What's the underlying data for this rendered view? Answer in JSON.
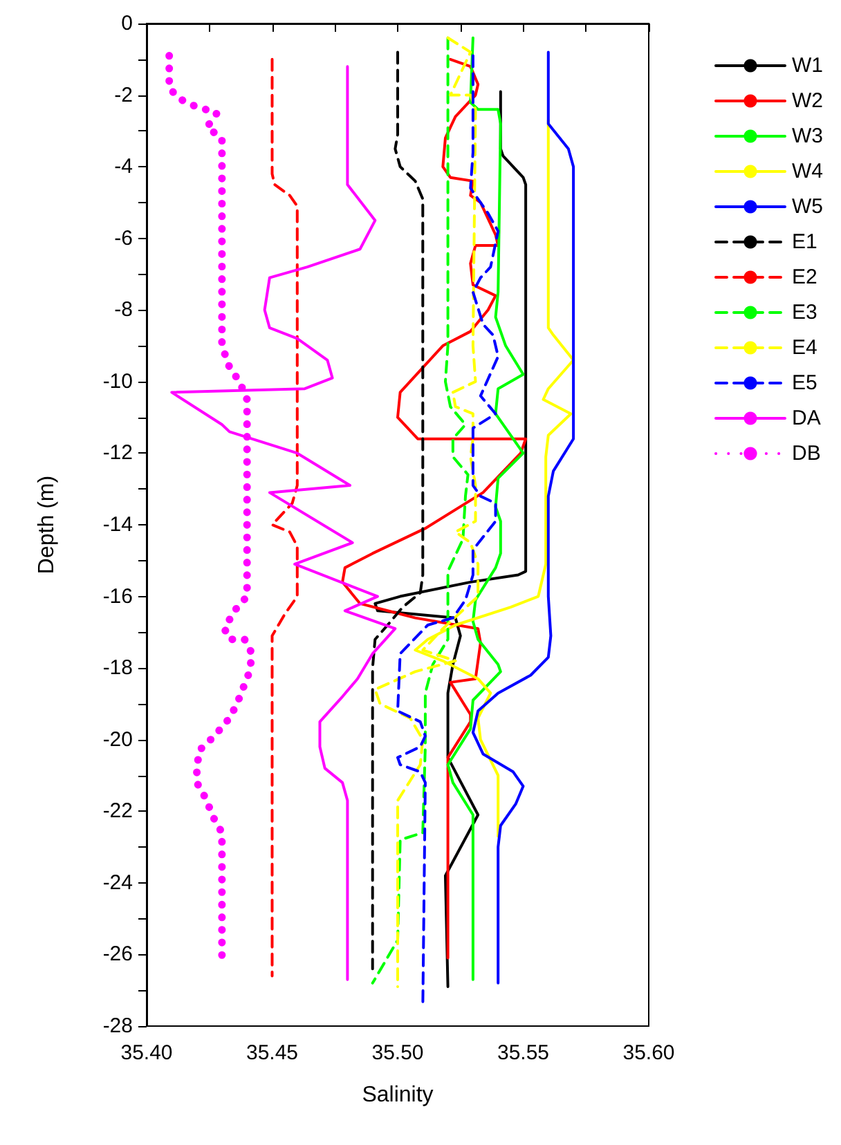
{
  "chart_data": {
    "type": "line",
    "xlabel": "Salinity",
    "ylabel": "Depth (m)",
    "legend": "right",
    "grid": false,
    "xlim": [
      35.4,
      35.6
    ],
    "xticks": [
      {
        "value": 35.4,
        "label": "35.40"
      },
      {
        "value": 35.425,
        "label": null
      },
      {
        "value": 35.45,
        "label": "35.45"
      },
      {
        "value": 35.475,
        "label": null
      },
      {
        "value": 35.5,
        "label": "35.50"
      },
      {
        "value": 35.525,
        "label": null
      },
      {
        "value": 35.55,
        "label": "35.55"
      },
      {
        "value": 35.575,
        "label": null
      },
      {
        "value": 35.6,
        "label": "35.60"
      }
    ],
    "ylim": [
      -28,
      0
    ],
    "yticks": [
      -28,
      {
        "value": -27,
        "label": null
      },
      -26,
      {
        "value": -25,
        "label": null
      },
      -24,
      {
        "value": -23,
        "label": null
      },
      -22,
      {
        "value": -21,
        "label": null
      },
      -20,
      {
        "value": -19,
        "label": null
      },
      -18,
      {
        "value": -17,
        "label": null
      },
      -16,
      {
        "value": -15,
        "label": null
      },
      -14,
      {
        "value": -13,
        "label": null
      },
      -12,
      {
        "value": -11,
        "label": null
      },
      -10,
      {
        "value": -9,
        "label": null
      },
      -8,
      {
        "value": -7,
        "label": null
      },
      -6,
      {
        "value": -5,
        "label": null
      },
      -4,
      {
        "value": -3,
        "label": null
      },
      -2,
      {
        "value": -1,
        "label": null
      },
      0
    ],
    "series": [
      {
        "name": "W1",
        "color": "#000000",
        "line_style": "solid",
        "x": [
          35.541,
          35.541,
          35.542,
          35.55,
          35.551,
          35.551,
          35.548,
          35.529,
          35.501,
          35.491,
          35.492,
          35.523,
          35.525,
          35.522,
          35.52,
          35.52,
          35.532,
          35.519,
          35.52
        ],
        "values": [
          -1.9,
          -3.5,
          -3.7,
          -4.3,
          -4.5,
          -15.3,
          -15.4,
          -15.6,
          -16.0,
          -16.2,
          -16.4,
          -16.6,
          -17.1,
          -17.9,
          -18.7,
          -20.5,
          -22.1,
          -23.8,
          -26.9
        ]
      },
      {
        "name": "W2",
        "color": "#ff0000",
        "line_style": "solid",
        "x": [
          35.521,
          35.529,
          35.532,
          35.531,
          35.523,
          35.519,
          35.518,
          35.521,
          35.53,
          35.529,
          35.533,
          35.539,
          35.54,
          35.531,
          35.529,
          35.53,
          35.539,
          35.536,
          35.529,
          35.518,
          35.501,
          35.5,
          35.508,
          35.551,
          35.549,
          35.534,
          35.511,
          35.49,
          35.479,
          35.478,
          35.485,
          35.496,
          35.507,
          35.532,
          35.533,
          35.531,
          35.521,
          35.529,
          35.529,
          35.52,
          35.52
        ],
        "values": [
          -1.0,
          -1.2,
          -1.7,
          -2.0,
          -2.6,
          -3.2,
          -4.0,
          -4.3,
          -4.4,
          -4.8,
          -5.0,
          -5.9,
          -6.2,
          -6.2,
          -6.7,
          -7.3,
          -7.6,
          -8.0,
          -8.6,
          -9.0,
          -10.3,
          -11.0,
          -11.6,
          -11.6,
          -12.0,
          -13.1,
          -14.1,
          -14.8,
          -15.2,
          -15.6,
          -16.2,
          -16.4,
          -16.6,
          -16.9,
          -17.3,
          -18.3,
          -18.4,
          -19.3,
          -19.5,
          -20.5,
          -26.1
        ]
      },
      {
        "name": "W3",
        "color": "#00ff00",
        "line_style": "solid",
        "x": [
          35.53,
          35.529,
          35.532,
          35.54,
          35.541,
          35.54,
          35.539,
          35.543,
          35.55,
          35.54,
          35.539,
          35.55,
          35.54,
          35.539,
          35.541,
          35.541,
          35.539,
          35.531,
          35.53,
          35.532,
          35.54,
          35.541,
          35.53,
          35.529,
          35.52,
          35.522,
          35.53,
          35.53
        ],
        "values": [
          -0.4,
          -2.2,
          -2.4,
          -2.4,
          -2.8,
          -7.5,
          -8.2,
          -9.0,
          -9.8,
          -10.2,
          -10.9,
          -12.0,
          -12.7,
          -13.5,
          -13.9,
          -14.8,
          -15.2,
          -16.1,
          -16.7,
          -17.2,
          -17.9,
          -18.1,
          -18.9,
          -19.7,
          -20.7,
          -21.2,
          -22.1,
          -26.7
        ]
      },
      {
        "name": "W4",
        "color": "#ffff00",
        "line_style": "solid",
        "x": [
          35.56,
          35.56,
          35.562,
          35.57,
          35.56,
          35.558,
          35.569,
          35.56,
          35.559,
          35.559,
          35.556,
          35.545,
          35.523,
          35.512,
          35.507,
          35.518,
          35.532,
          35.537,
          35.532,
          35.533,
          35.54,
          35.54
        ],
        "values": [
          -2.7,
          -8.5,
          -8.7,
          -9.4,
          -10.2,
          -10.5,
          -10.9,
          -11.5,
          -12.1,
          -15.1,
          -16.0,
          -16.3,
          -16.8,
          -17.2,
          -17.5,
          -17.8,
          -18.3,
          -18.7,
          -19.4,
          -20.0,
          -21.0,
          -22.7
        ]
      },
      {
        "name": "W5",
        "color": "#0000ff",
        "line_style": "solid",
        "x": [
          35.56,
          35.56,
          35.56,
          35.568,
          35.57,
          35.57,
          35.562,
          35.56,
          35.56,
          35.561,
          35.56,
          35.553,
          35.54,
          35.532,
          35.53,
          35.534,
          35.546,
          35.55,
          35.547,
          35.541,
          35.54,
          35.54
        ],
        "values": [
          -0.8,
          -2.4,
          -2.8,
          -3.5,
          -4.0,
          -11.6,
          -12.5,
          -13.2,
          -16.0,
          -17.1,
          -17.7,
          -18.2,
          -18.7,
          -19.2,
          -19.8,
          -20.4,
          -20.9,
          -21.3,
          -21.8,
          -22.4,
          -23.0,
          -26.8
        ]
      },
      {
        "name": "E1",
        "color": "#000000",
        "line_style": "dashed",
        "x": [
          35.5,
          35.5,
          35.499,
          35.501,
          35.507,
          35.51,
          35.51,
          35.509,
          35.502,
          35.496,
          35.491,
          35.49,
          35.49
        ],
        "values": [
          -0.8,
          -3.1,
          -3.5,
          -4.0,
          -4.4,
          -4.9,
          -15.4,
          -15.9,
          -16.3,
          -16.8,
          -17.2,
          -18.0,
          -26.4
        ]
      },
      {
        "name": "E2",
        "color": "#ff0000",
        "line_style": "dashed",
        "x": [
          35.45,
          35.45,
          35.451,
          35.457,
          35.46,
          35.46,
          35.458,
          35.45,
          35.457,
          35.46,
          35.46,
          35.455,
          35.45,
          35.45,
          35.45
        ],
        "values": [
          -1.0,
          -4.2,
          -4.5,
          -4.8,
          -5.1,
          -12.9,
          -13.4,
          -14.0,
          -14.2,
          -14.6,
          -16.0,
          -16.5,
          -17.1,
          -17.9,
          -26.6
        ]
      },
      {
        "name": "E3",
        "color": "#00ff00",
        "line_style": "dashed",
        "x": [
          35.52,
          35.52,
          35.519,
          35.521,
          35.527,
          35.522,
          35.522,
          35.528,
          35.527,
          35.526,
          35.52,
          35.52,
          35.52,
          35.514,
          35.511,
          35.511,
          35.51,
          35.501,
          35.5,
          35.49
        ],
        "values": [
          -0.4,
          -9.0,
          -10.0,
          -10.7,
          -11.2,
          -11.6,
          -12.1,
          -12.6,
          -13.2,
          -14.4,
          -15.3,
          -16.5,
          -17.2,
          -17.9,
          -18.7,
          -20.2,
          -22.6,
          -22.8,
          -25.6,
          -26.8
        ]
      },
      {
        "name": "E4",
        "color": "#ffff00",
        "line_style": "dashed",
        "x": [
          35.52,
          35.529,
          35.523,
          35.521,
          35.529,
          35.531,
          35.53,
          35.531,
          35.522,
          35.523,
          35.53,
          35.53,
          35.529,
          35.531,
          35.531,
          35.523,
          35.529,
          35.532,
          35.532,
          35.518,
          35.51,
          35.523,
          35.507,
          35.491,
          35.493,
          35.505,
          35.51,
          35.509,
          35.5,
          35.5
        ],
        "values": [
          -0.4,
          -0.8,
          -1.7,
          -2.0,
          -2.0,
          -2.4,
          -9.0,
          -10.0,
          -10.3,
          -10.7,
          -10.9,
          -11.6,
          -12.1,
          -12.9,
          -13.9,
          -14.2,
          -14.5,
          -15.1,
          -16.0,
          -16.9,
          -17.5,
          -17.8,
          -18.1,
          -18.6,
          -19.0,
          -19.4,
          -20.0,
          -20.7,
          -21.7,
          -26.9
        ]
      },
      {
        "name": "E5",
        "color": "#0000ff",
        "line_style": "dashed",
        "x": [
          35.53,
          35.53,
          35.529,
          35.533,
          35.536,
          35.54,
          35.537,
          35.533,
          35.53,
          35.534,
          35.538,
          35.54,
          35.533,
          35.539,
          35.53,
          35.53,
          35.533,
          35.539,
          35.539,
          35.53,
          35.53,
          35.527,
          35.522,
          35.512,
          35.501,
          35.5,
          35.509,
          35.511,
          35.509,
          35.5,
          35.501,
          35.509,
          35.511,
          35.51
        ],
        "values": [
          -0.9,
          -3.6,
          -4.6,
          -5.0,
          -5.3,
          -5.8,
          -6.8,
          -7.1,
          -7.5,
          -8.4,
          -8.7,
          -9.3,
          -10.4,
          -10.9,
          -11.3,
          -12.9,
          -13.2,
          -13.4,
          -13.9,
          -14.7,
          -15.4,
          -16.1,
          -16.6,
          -16.8,
          -17.6,
          -19.2,
          -19.5,
          -19.9,
          -20.2,
          -20.5,
          -20.7,
          -20.9,
          -21.2,
          -27.5
        ]
      },
      {
        "name": "DA",
        "color": "#ff00ff",
        "line_style": "solid",
        "x": [
          35.48,
          35.48,
          35.491,
          35.485,
          35.464,
          35.449,
          35.447,
          35.449,
          35.46,
          35.472,
          35.474,
          35.463,
          35.41,
          35.43,
          35.433,
          35.46,
          35.481,
          35.449,
          35.482,
          35.459,
          35.492,
          35.479,
          35.499,
          35.49,
          35.484,
          35.478,
          35.469,
          35.469,
          35.471,
          35.478,
          35.48,
          35.48,
          35.48
        ],
        "values": [
          -1.2,
          -4.5,
          -5.5,
          -6.3,
          -6.8,
          -7.1,
          -8.0,
          -8.5,
          -8.8,
          -9.4,
          -9.9,
          -10.2,
          -10.3,
          -11.2,
          -11.4,
          -12.0,
          -12.9,
          -13.1,
          -14.5,
          -15.1,
          -16.0,
          -16.4,
          -16.9,
          -17.6,
          -18.3,
          -18.8,
          -19.5,
          -20.2,
          -20.8,
          -21.2,
          -21.7,
          -22.3,
          -26.7
        ]
      },
      {
        "name": "DB",
        "color": "#ff00ff",
        "line_style": "dotted",
        "x": [
          35.409,
          35.409,
          35.413,
          35.419,
          35.428,
          35.424,
          35.43,
          35.43,
          35.433,
          35.437,
          35.44,
          35.44,
          35.435,
          35.431,
          35.433,
          35.439,
          35.442,
          35.441,
          35.436,
          35.433,
          35.427,
          35.421,
          35.42,
          35.42,
          35.424,
          35.426,
          35.43,
          35.43
        ],
        "values": [
          -0.9,
          -1.8,
          -2.1,
          -2.3,
          -2.5,
          -2.9,
          -3.2,
          -9.0,
          -9.6,
          -10.0,
          -10.5,
          -16.0,
          -16.4,
          -16.9,
          -17.2,
          -17.2,
          -17.6,
          -18.1,
          -19.0,
          -19.4,
          -19.9,
          -20.3,
          -20.8,
          -21.2,
          -21.7,
          -22.1,
          -22.6,
          -26.2
        ]
      }
    ]
  }
}
